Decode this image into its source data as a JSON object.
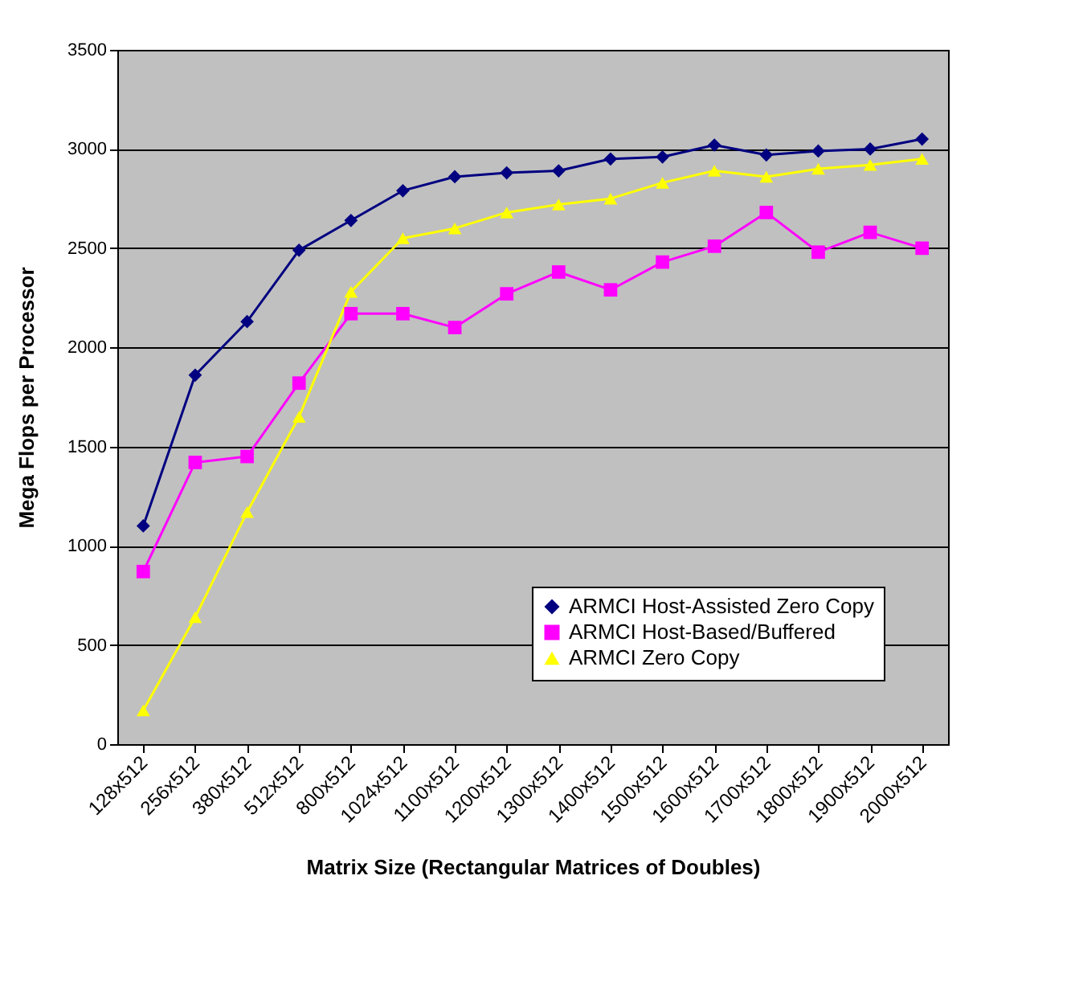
{
  "chart_data": {
    "type": "line",
    "xlabel": "Matrix Size (Rectangular Matrices of Doubles)",
    "ylabel": "Mega Flops per Processor",
    "categories": [
      "128x512",
      "256x512",
      "380x512",
      "512x512",
      "800x512",
      "1024x512",
      "1100x512",
      "1200x512",
      "1300x512",
      "1400x512",
      "1500x512",
      "1600x512",
      "1700x512",
      "1800x512",
      "1900x512",
      "2000x512"
    ],
    "series": [
      {
        "name": "ARMCI Host-Assisted Zero Copy",
        "color": "#000080",
        "marker": "diamond",
        "values": [
          1100,
          1860,
          2130,
          2490,
          2640,
          2790,
          2860,
          2880,
          2890,
          2950,
          2960,
          3020,
          2970,
          2990,
          3000,
          3050
        ]
      },
      {
        "name": "ARMCI Host-Based/Buffered",
        "color": "#ff00ff",
        "marker": "square",
        "values": [
          870,
          1420,
          1450,
          1820,
          2170,
          2170,
          2100,
          2270,
          2380,
          2290,
          2430,
          2510,
          2680,
          2480,
          2580,
          2500
        ]
      },
      {
        "name": "ARMCI Zero Copy",
        "color": "#ffff00",
        "marker": "triangle",
        "values": [
          170,
          640,
          1170,
          1650,
          2280,
          2550,
          2600,
          2680,
          2720,
          2750,
          2830,
          2890,
          2860,
          2900,
          2920,
          2950
        ]
      }
    ],
    "ylim": [
      0,
      3500
    ],
    "yticks": [
      0,
      500,
      {
        "value": 1000,
        "label": "1000"
      },
      {
        "value": 1500,
        "label": "1500"
      },
      {
        "value": 2000,
        "label": "2000"
      },
      {
        "value": 2500,
        "label": "2500"
      },
      {
        "value": 3000,
        "label": "3000"
      },
      {
        "value": 3500,
        "label": "3500"
      }
    ],
    "grid": "y",
    "legend": "bottom right",
    "line_style": "solid"
  }
}
